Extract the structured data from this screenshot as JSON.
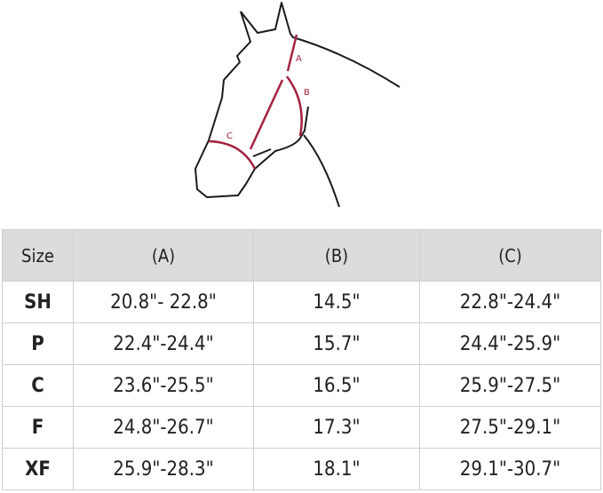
{
  "diagram": {
    "labels": [
      "A",
      "B",
      "C"
    ],
    "outline_color": "#1a1a1a",
    "measure_color": "#a3233f"
  },
  "table": {
    "headers": [
      "Size",
      "(A)",
      "(B)",
      "(C)"
    ],
    "rows": [
      [
        "SH",
        "20.8\"- 22.8\"",
        "14.5\"",
        "22.8\"-24.4\""
      ],
      [
        "P",
        "22.4\"-24.4\"",
        "15.7\"",
        "24.4\"-25.9\""
      ],
      [
        "C",
        "23.6\"-25.5\"",
        "16.5\"",
        "25.9\"-27.5\""
      ],
      [
        "F",
        "24.8\"-26.7\"",
        "17.3\"",
        "27.5\"-29.1\""
      ],
      [
        "XF",
        "25.9\"-28.3\"",
        "18.1\"",
        "29.1\"-30.7\""
      ]
    ]
  }
}
